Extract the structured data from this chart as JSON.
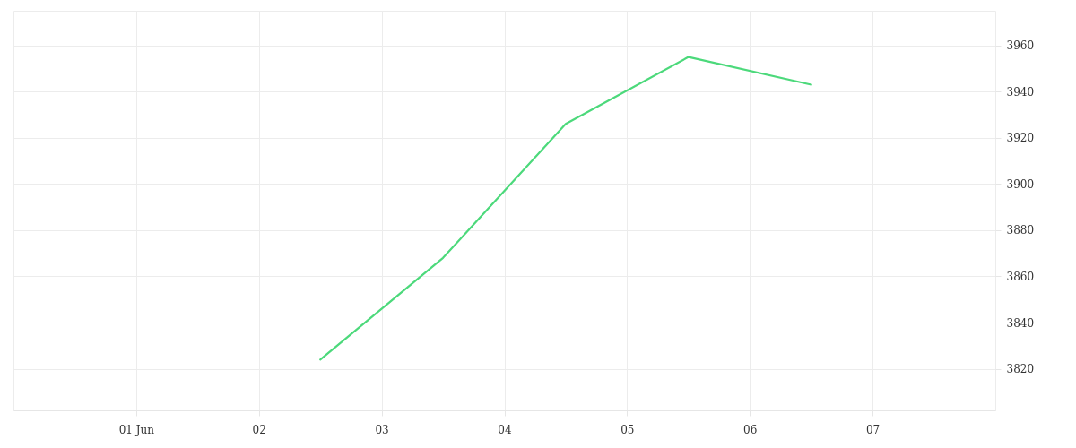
{
  "chart_data": {
    "type": "line",
    "x": [
      2.5,
      3.5,
      4.5,
      5.5,
      6.5
    ],
    "series": [
      {
        "color": "#4cd97b",
        "values": [
          3824,
          3868,
          3926,
          3955,
          3943
        ]
      }
    ],
    "xlim": [
      0,
      8
    ],
    "xticks": [
      {
        "value": 1,
        "label": "01 Jun"
      },
      {
        "value": 2,
        "label": "02"
      },
      {
        "value": 3,
        "label": "03"
      },
      {
        "value": 4,
        "label": "04"
      },
      {
        "value": 5,
        "label": "05"
      },
      {
        "value": 6,
        "label": "06"
      },
      {
        "value": 7,
        "label": "07"
      }
    ],
    "ylim": [
      3802,
      3975
    ],
    "yticks": [
      3820,
      3840,
      3860,
      3880,
      3900,
      3920,
      3940,
      3960
    ],
    "grid": true
  }
}
